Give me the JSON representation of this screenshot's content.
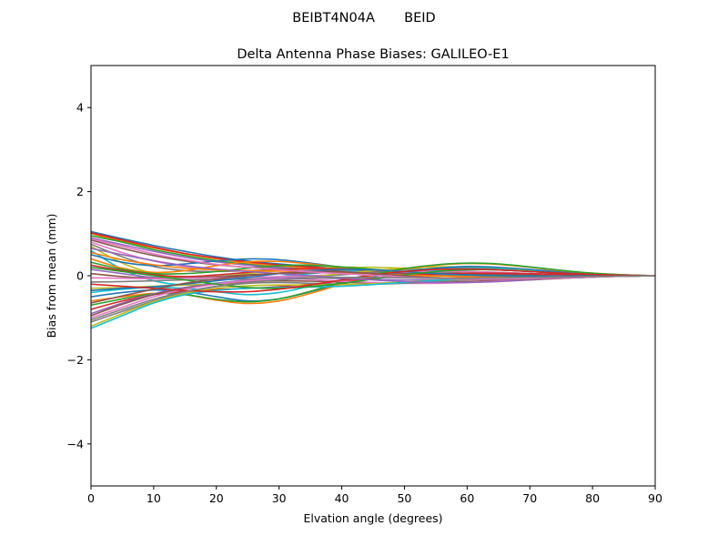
{
  "suptitle": "BEIBT4N04A       BEID",
  "chart_data": {
    "type": "line",
    "title": "Delta Antenna Phase Biases: GALILEO-E1",
    "xlabel": "Elvation angle (degrees)",
    "ylabel": "Bias from mean (mm)",
    "xlim": [
      0,
      90
    ],
    "ylim": [
      -5,
      5
    ],
    "xticks": [
      0,
      10,
      20,
      30,
      40,
      50,
      60,
      70,
      80,
      90
    ],
    "yticks": [
      -4,
      -2,
      0,
      2,
      4
    ],
    "xtick_labels": [
      "0",
      "10",
      "20",
      "30",
      "40",
      "50",
      "60",
      "70",
      "80",
      "90"
    ],
    "ytick_labels": [
      "−4",
      "−2",
      "0",
      "2",
      "4"
    ],
    "grid": false,
    "legend": "none",
    "x": [
      0,
      5,
      10,
      15,
      20,
      25,
      30,
      35,
      40,
      45,
      50,
      55,
      60,
      65,
      70,
      75,
      80,
      85,
      90
    ],
    "colors": [
      "#1f77b4",
      "#ff7f0e",
      "#2ca02c",
      "#d62728",
      "#9467bd",
      "#8c564b",
      "#e377c2",
      "#7f7f7f",
      "#bcbd22",
      "#17becf"
    ],
    "series": [
      {
        "values": [
          1.05,
          0.88,
          0.72,
          0.58,
          0.45,
          0.35,
          0.28,
          0.22,
          0.17,
          0.12,
          0.07,
          0.04,
          0.02,
          0.01,
          0.0,
          -0.01,
          -0.01,
          -0.01,
          0.0
        ]
      },
      {
        "values": [
          1.0,
          0.82,
          0.66,
          0.52,
          0.4,
          0.3,
          0.23,
          0.18,
          0.14,
          0.1,
          0.06,
          0.03,
          0.01,
          0.0,
          -0.01,
          -0.01,
          -0.01,
          -0.01,
          0.0
        ]
      },
      {
        "values": [
          0.95,
          0.8,
          0.62,
          0.48,
          0.36,
          0.27,
          0.2,
          0.15,
          0.11,
          0.07,
          0.04,
          0.02,
          0.0,
          -0.01,
          -0.02,
          -0.02,
          -0.01,
          -0.01,
          0.0
        ]
      },
      {
        "values": [
          1.02,
          0.85,
          0.68,
          0.53,
          0.42,
          0.33,
          0.26,
          0.21,
          0.17,
          0.13,
          0.09,
          0.06,
          0.04,
          0.03,
          0.02,
          0.01,
          0.01,
          0.0,
          0.0
        ]
      },
      {
        "values": [
          0.9,
          0.74,
          0.58,
          0.44,
          0.33,
          0.25,
          0.19,
          0.14,
          0.1,
          0.06,
          0.03,
          0.01,
          -0.01,
          -0.02,
          -0.02,
          -0.02,
          -0.01,
          -0.01,
          0.0
        ]
      },
      {
        "values": [
          0.85,
          0.65,
          0.48,
          0.35,
          0.26,
          0.2,
          0.16,
          0.13,
          0.11,
          0.09,
          0.07,
          0.05,
          0.04,
          0.03,
          0.02,
          0.01,
          0.01,
          0.0,
          0.0
        ]
      },
      {
        "values": [
          0.8,
          0.55,
          0.35,
          0.22,
          0.15,
          0.12,
          0.12,
          0.14,
          0.15,
          0.14,
          0.11,
          0.08,
          0.05,
          0.03,
          0.02,
          0.01,
          0.0,
          0.0,
          0.0
        ]
      },
      {
        "values": [
          0.75,
          0.45,
          0.22,
          0.12,
          0.1,
          0.12,
          0.15,
          0.17,
          0.17,
          0.15,
          0.12,
          0.09,
          0.06,
          0.04,
          0.02,
          0.01,
          0.0,
          0.0,
          0.0
        ]
      },
      {
        "values": [
          0.7,
          0.3,
          0.05,
          -0.05,
          -0.02,
          0.05,
          0.12,
          0.17,
          0.2,
          0.2,
          0.18,
          0.14,
          0.1,
          0.06,
          0.03,
          0.01,
          0.0,
          0.0,
          0.0
        ]
      },
      {
        "values": [
          0.6,
          0.15,
          -0.12,
          -0.22,
          -0.18,
          -0.1,
          -0.02,
          0.05,
          0.1,
          0.12,
          0.13,
          0.12,
          0.1,
          0.08,
          0.05,
          0.03,
          0.02,
          0.01,
          0.0
        ]
      },
      {
        "values": [
          0.5,
          0.32,
          0.24,
          0.28,
          0.35,
          0.4,
          0.38,
          0.3,
          0.2,
          0.12,
          0.06,
          0.02,
          0.0,
          -0.01,
          -0.02,
          -0.02,
          -0.01,
          -0.01,
          0.0
        ]
      },
      {
        "values": [
          0.4,
          0.18,
          0.08,
          0.12,
          0.24,
          0.33,
          0.34,
          0.28,
          0.2,
          0.12,
          0.07,
          0.03,
          0.01,
          0.0,
          -0.01,
          -0.01,
          -0.01,
          0.0,
          0.0
        ]
      },
      {
        "values": [
          0.32,
          0.15,
          0.05,
          0.05,
          0.1,
          0.18,
          0.24,
          0.25,
          0.21,
          0.15,
          0.09,
          0.05,
          0.02,
          0.0,
          -0.01,
          -0.01,
          0.0,
          0.0,
          0.0
        ]
      },
      {
        "values": [
          0.25,
          0.12,
          0.02,
          -0.02,
          0.02,
          0.08,
          0.14,
          0.17,
          0.16,
          0.12,
          0.08,
          0.05,
          0.03,
          0.01,
          0.0,
          0.0,
          0.0,
          0.0,
          0.0
        ]
      },
      {
        "values": [
          0.15,
          0.05,
          -0.04,
          -0.06,
          -0.04,
          0.01,
          0.06,
          0.09,
          0.09,
          0.08,
          0.06,
          0.04,
          0.03,
          0.02,
          0.01,
          0.0,
          0.0,
          0.0,
          0.0
        ]
      },
      {
        "values": [
          0.05,
          -0.02,
          -0.06,
          -0.05,
          -0.02,
          0.02,
          0.05,
          0.07,
          0.07,
          0.06,
          0.05,
          0.05,
          0.04,
          0.03,
          0.02,
          0.01,
          0.01,
          0.0,
          0.0
        ]
      },
      {
        "values": [
          -0.05,
          -0.06,
          -0.07,
          -0.06,
          -0.05,
          -0.04,
          -0.02,
          0.0,
          0.03,
          0.06,
          0.09,
          0.1,
          0.1,
          0.08,
          0.05,
          0.03,
          0.02,
          0.01,
          0.0
        ]
      },
      {
        "values": [
          -0.15,
          -0.14,
          -0.12,
          -0.1,
          -0.09,
          -0.08,
          -0.06,
          -0.03,
          0.02,
          0.08,
          0.13,
          0.16,
          0.16,
          0.14,
          0.1,
          0.06,
          0.03,
          0.01,
          0.0
        ]
      },
      {
        "values": [
          -0.3,
          -0.28,
          -0.25,
          -0.22,
          -0.2,
          -0.16,
          -0.1,
          -0.03,
          0.05,
          0.12,
          0.18,
          0.21,
          0.21,
          0.18,
          0.13,
          0.08,
          0.04,
          0.02,
          0.0
        ]
      },
      {
        "values": [
          -0.4,
          -0.32,
          -0.28,
          -0.3,
          -0.38,
          -0.45,
          -0.4,
          -0.25,
          -0.1,
          0.03,
          0.12,
          0.17,
          0.18,
          0.16,
          0.11,
          0.07,
          0.03,
          0.01,
          0.0
        ]
      },
      {
        "values": [
          -0.5,
          -0.4,
          -0.34,
          -0.38,
          -0.5,
          -0.6,
          -0.55,
          -0.38,
          -0.18,
          -0.02,
          0.1,
          0.18,
          0.22,
          0.2,
          0.15,
          0.09,
          0.05,
          0.02,
          0.0
        ]
      },
      {
        "values": [
          -0.6,
          -0.5,
          -0.42,
          -0.45,
          -0.58,
          -0.66,
          -0.6,
          -0.42,
          -0.2,
          0.0,
          0.15,
          0.25,
          0.29,
          0.27,
          0.2,
          0.12,
          0.06,
          0.02,
          0.0
        ]
      },
      {
        "values": [
          -0.7,
          -0.55,
          -0.43,
          -0.45,
          -0.56,
          -0.62,
          -0.55,
          -0.37,
          -0.15,
          0.03,
          0.17,
          0.26,
          0.3,
          0.28,
          0.21,
          0.13,
          0.06,
          0.02,
          0.0
        ]
      },
      {
        "values": [
          -0.8,
          -0.6,
          -0.45,
          -0.38,
          -0.33,
          -0.3,
          -0.26,
          -0.2,
          -0.13,
          -0.06,
          0.0,
          0.04,
          0.06,
          0.06,
          0.05,
          0.03,
          0.02,
          0.01,
          0.0
        ]
      },
      {
        "values": [
          -0.9,
          -0.65,
          -0.43,
          -0.28,
          -0.18,
          -0.1,
          -0.06,
          -0.05,
          -0.07,
          -0.09,
          -0.1,
          -0.1,
          -0.09,
          -0.07,
          -0.05,
          -0.03,
          -0.02,
          -0.01,
          0.0
        ]
      },
      {
        "values": [
          -0.95,
          -0.68,
          -0.45,
          -0.3,
          -0.2,
          -0.14,
          -0.12,
          -0.13,
          -0.15,
          -0.17,
          -0.17,
          -0.16,
          -0.14,
          -0.11,
          -0.08,
          -0.05,
          -0.03,
          -0.01,
          0.0
        ]
      },
      {
        "values": [
          -1.0,
          -0.75,
          -0.5,
          -0.32,
          -0.2,
          -0.12,
          -0.08,
          -0.09,
          -0.13,
          -0.16,
          -0.18,
          -0.18,
          -0.16,
          -0.13,
          -0.1,
          -0.06,
          -0.03,
          -0.01,
          0.0
        ]
      },
      {
        "values": [
          -1.1,
          -0.85,
          -0.6,
          -0.4,
          -0.26,
          -0.18,
          -0.16,
          -0.18,
          -0.2,
          -0.2,
          -0.18,
          -0.14,
          -0.1,
          -0.07,
          -0.05,
          -0.03,
          -0.02,
          -0.01,
          0.0
        ]
      },
      {
        "values": [
          -1.2,
          -0.9,
          -0.62,
          -0.42,
          -0.3,
          -0.24,
          -0.22,
          -0.22,
          -0.21,
          -0.19,
          -0.15,
          -0.11,
          -0.08,
          -0.05,
          -0.03,
          -0.02,
          -0.01,
          0.0,
          0.0
        ]
      },
      {
        "values": [
          -1.25,
          -0.95,
          -0.65,
          -0.45,
          -0.35,
          -0.3,
          -0.28,
          -0.27,
          -0.25,
          -0.21,
          -0.16,
          -0.11,
          -0.07,
          -0.04,
          -0.02,
          -0.01,
          -0.01,
          0.0,
          0.0
        ]
      },
      {
        "values": [
          -0.35,
          -0.3,
          -0.26,
          -0.2,
          -0.12,
          -0.04,
          0.05,
          0.12,
          0.15,
          0.14,
          0.1,
          0.05,
          0.02,
          0.0,
          -0.01,
          -0.01,
          0.0,
          0.0,
          0.0
        ]
      },
      {
        "values": [
          0.55,
          0.38,
          0.26,
          0.18,
          0.14,
          0.12,
          0.11,
          0.1,
          0.08,
          0.05,
          0.02,
          -0.01,
          -0.03,
          -0.04,
          -0.04,
          -0.03,
          -0.02,
          -0.01,
          0.0
        ]
      },
      {
        "values": [
          0.2,
          0.1,
          0.0,
          -0.1,
          -0.2,
          -0.28,
          -0.3,
          -0.26,
          -0.18,
          -0.08,
          0.02,
          0.1,
          0.14,
          0.14,
          0.1,
          0.06,
          0.03,
          0.01,
          0.0
        ]
      },
      {
        "values": [
          -0.2,
          -0.25,
          -0.3,
          -0.35,
          -0.38,
          -0.38,
          -0.32,
          -0.22,
          -0.1,
          0.02,
          0.1,
          0.15,
          0.16,
          0.14,
          0.1,
          0.06,
          0.03,
          0.01,
          0.0
        ]
      },
      {
        "values": [
          0.65,
          0.5,
          0.36,
          0.24,
          0.16,
          0.1,
          0.05,
          0.0,
          -0.05,
          -0.1,
          -0.14,
          -0.16,
          -0.16,
          -0.14,
          -0.1,
          -0.06,
          -0.03,
          -0.01,
          0.0
        ]
      },
      {
        "values": [
          -0.65,
          -0.48,
          -0.32,
          -0.18,
          -0.08,
          0.0,
          0.06,
          0.09,
          0.09,
          0.05,
          0.0,
          -0.05,
          -0.08,
          -0.09,
          -0.08,
          -0.06,
          -0.03,
          -0.01,
          0.0
        ]
      },
      {
        "values": [
          0.88,
          0.7,
          0.52,
          0.38,
          0.27,
          0.2,
          0.14,
          0.09,
          0.05,
          0.01,
          -0.03,
          -0.06,
          -0.08,
          -0.08,
          -0.07,
          -0.05,
          -0.03,
          -0.01,
          0.0
        ]
      },
      {
        "values": [
          -1.05,
          -0.8,
          -0.56,
          -0.38,
          -0.25,
          -0.16,
          -0.1,
          -0.06,
          -0.04,
          -0.04,
          -0.05,
          -0.06,
          -0.06,
          -0.05,
          -0.04,
          -0.03,
          -0.02,
          -0.01,
          0.0
        ]
      }
    ]
  }
}
